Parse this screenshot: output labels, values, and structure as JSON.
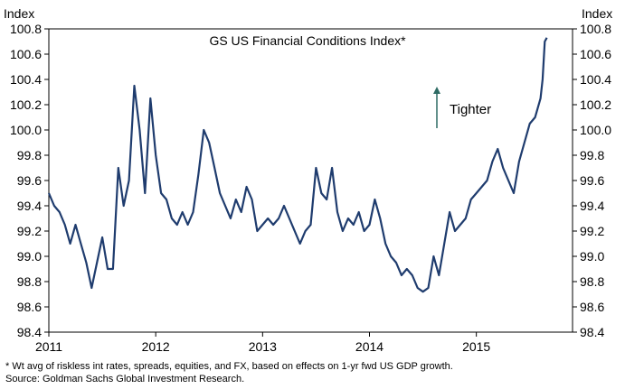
{
  "chart_data": {
    "type": "line",
    "title": "GS US Financial Conditions Index*",
    "y_unit_left": "Index",
    "y_unit_right": "Index",
    "ylim": [
      98.4,
      100.8
    ],
    "yticks": [
      "100.8",
      "100.6",
      "100.4",
      "100.2",
      "100.0",
      "99.8",
      "99.6",
      "99.4",
      "99.2",
      "99.0",
      "98.8",
      "98.6",
      "98.4"
    ],
    "xlim": [
      2011.0,
      2015.9
    ],
    "xticks": [
      "2011",
      "2012",
      "2013",
      "2014",
      "2015"
    ],
    "grid": false,
    "annotation": "Tighter",
    "series_color": "#1f3c6e",
    "arrow_color": "#2e6b64",
    "series": [
      {
        "points": [
          [
            2011.0,
            99.5
          ],
          [
            2011.05,
            99.4
          ],
          [
            2011.1,
            99.35
          ],
          [
            2011.15,
            99.25
          ],
          [
            2011.2,
            99.1
          ],
          [
            2011.25,
            99.25
          ],
          [
            2011.3,
            99.1
          ],
          [
            2011.35,
            98.95
          ],
          [
            2011.4,
            98.75
          ],
          [
            2011.45,
            98.95
          ],
          [
            2011.5,
            99.15
          ],
          [
            2011.55,
            98.9
          ],
          [
            2011.6,
            98.9
          ],
          [
            2011.65,
            99.7
          ],
          [
            2011.7,
            99.4
          ],
          [
            2011.75,
            99.6
          ],
          [
            2011.8,
            100.35
          ],
          [
            2011.85,
            100.0
          ],
          [
            2011.9,
            99.5
          ],
          [
            2011.95,
            100.25
          ],
          [
            2012.0,
            99.8
          ],
          [
            2012.05,
            99.5
          ],
          [
            2012.1,
            99.45
          ],
          [
            2012.15,
            99.3
          ],
          [
            2012.2,
            99.25
          ],
          [
            2012.25,
            99.35
          ],
          [
            2012.3,
            99.25
          ],
          [
            2012.35,
            99.35
          ],
          [
            2012.4,
            99.65
          ],
          [
            2012.45,
            100.0
          ],
          [
            2012.5,
            99.9
          ],
          [
            2012.55,
            99.7
          ],
          [
            2012.6,
            99.5
          ],
          [
            2012.65,
            99.4
          ],
          [
            2012.7,
            99.3
          ],
          [
            2012.75,
            99.45
          ],
          [
            2012.8,
            99.35
          ],
          [
            2012.85,
            99.55
          ],
          [
            2012.9,
            99.45
          ],
          [
            2012.95,
            99.2
          ],
          [
            2013.0,
            99.25
          ],
          [
            2013.05,
            99.3
          ],
          [
            2013.1,
            99.25
          ],
          [
            2013.15,
            99.3
          ],
          [
            2013.2,
            99.4
          ],
          [
            2013.25,
            99.3
          ],
          [
            2013.3,
            99.2
          ],
          [
            2013.35,
            99.1
          ],
          [
            2013.4,
            99.2
          ],
          [
            2013.45,
            99.25
          ],
          [
            2013.5,
            99.7
          ],
          [
            2013.55,
            99.5
          ],
          [
            2013.6,
            99.45
          ],
          [
            2013.65,
            99.7
          ],
          [
            2013.7,
            99.35
          ],
          [
            2013.75,
            99.2
          ],
          [
            2013.8,
            99.3
          ],
          [
            2013.85,
            99.25
          ],
          [
            2013.9,
            99.35
          ],
          [
            2013.95,
            99.2
          ],
          [
            2014.0,
            99.25
          ],
          [
            2014.05,
            99.45
          ],
          [
            2014.1,
            99.3
          ],
          [
            2014.15,
            99.1
          ],
          [
            2014.2,
            99.0
          ],
          [
            2014.25,
            98.95
          ],
          [
            2014.3,
            98.85
          ],
          [
            2014.35,
            98.9
          ],
          [
            2014.4,
            98.85
          ],
          [
            2014.45,
            98.75
          ],
          [
            2014.5,
            98.72
          ],
          [
            2014.55,
            98.75
          ],
          [
            2014.6,
            99.0
          ],
          [
            2014.65,
            98.85
          ],
          [
            2014.7,
            99.1
          ],
          [
            2014.75,
            99.35
          ],
          [
            2014.8,
            99.2
          ],
          [
            2014.85,
            99.25
          ],
          [
            2014.9,
            99.3
          ],
          [
            2014.95,
            99.45
          ],
          [
            2015.0,
            99.5
          ],
          [
            2015.05,
            99.55
          ],
          [
            2015.1,
            99.6
          ],
          [
            2015.15,
            99.75
          ],
          [
            2015.2,
            99.85
          ],
          [
            2015.25,
            99.7
          ],
          [
            2015.3,
            99.6
          ],
          [
            2015.35,
            99.5
          ],
          [
            2015.4,
            99.75
          ],
          [
            2015.45,
            99.9
          ],
          [
            2015.5,
            100.05
          ],
          [
            2015.55,
            100.1
          ],
          [
            2015.6,
            100.25
          ],
          [
            2015.62,
            100.4
          ],
          [
            2015.64,
            100.7
          ],
          [
            2015.66,
            100.73
          ]
        ]
      }
    ]
  },
  "footnotes": [
    "* Wt avg of riskless int rates, spreads, equities, and FX, based on effects on 1-yr fwd US GDP growth.",
    "Source: Goldman Sachs Global Investment Research."
  ]
}
